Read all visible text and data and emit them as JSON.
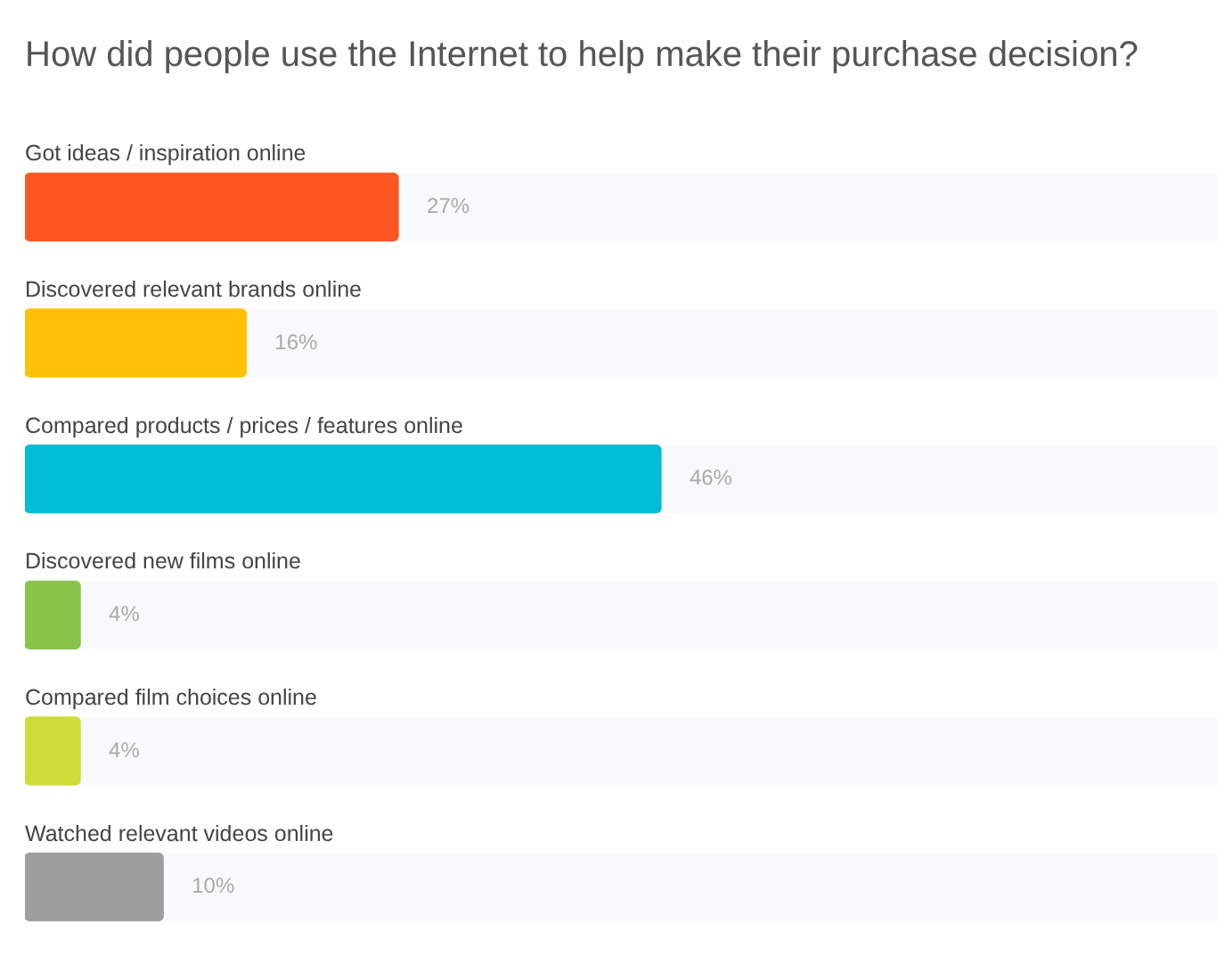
{
  "chart_data": {
    "type": "bar",
    "orientation": "horizontal",
    "title": "How did people use the Internet to help make their purchase decision?",
    "categories": [
      "Got ideas / inspiration online",
      "Discovered relevant brands online",
      "Compared products / prices / features online",
      "Discovered new films online",
      "Compared film choices online",
      "Watched relevant videos online"
    ],
    "values": [
      27,
      16,
      46,
      4,
      4,
      10
    ],
    "value_labels": [
      "27%",
      "16%",
      "46%",
      "4%",
      "4%",
      "10%"
    ],
    "colors": [
      "#ff5722",
      "#ffc107",
      "#00bcd4",
      "#8bc34a",
      "#cddc39",
      "#9e9e9e"
    ],
    "tick_labels": "y"
  }
}
